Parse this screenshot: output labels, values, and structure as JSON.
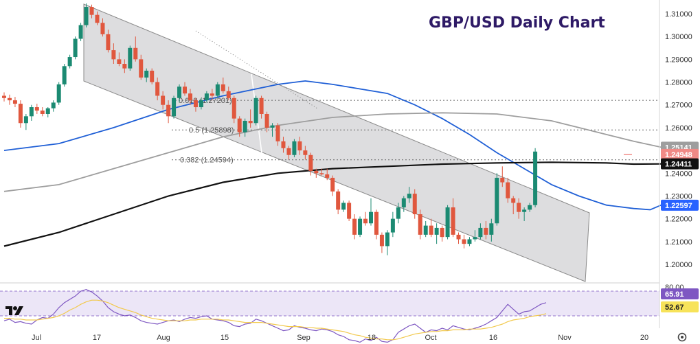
{
  "chart_data": [
    {
      "type": "candlestick",
      "title": "GBP/USD Daily Chart",
      "ylim": [
        1.19,
        1.315
      ],
      "y_ticks": [
        "1.31000",
        "1.30000",
        "1.29000",
        "1.28000",
        "1.27000",
        "1.26000",
        "1.25000",
        "1.24000",
        "1.23000",
        "1.22000",
        "1.21000",
        "1.20000"
      ],
      "x_ticks": [
        "Jul",
        "17",
        "Aug",
        "15",
        "Sep",
        "18",
        "Oct",
        "16",
        "Nov",
        "20"
      ],
      "price_badges": [
        {
          "value": "1.25141",
          "color": "#9e9e9e"
        },
        {
          "value": "1.24948",
          "color": "#f08a86"
        },
        {
          "value": "1.24411",
          "color": "#111111"
        },
        {
          "value": "1.22597",
          "color": "#2962ff"
        }
      ],
      "fib_levels": [
        {
          "label": "0.618 (1.27201)",
          "value": 1.272
        },
        {
          "label": "0.5 (1.25898)",
          "value": 1.259
        },
        {
          "label": "0.382 (1.24594)",
          "value": 1.2459
        }
      ],
      "series": [
        {
          "kind": "ohlc",
          "candles": [
            [
              1.274,
              1.2755,
              1.2715,
              1.273
            ],
            [
              1.273,
              1.2745,
              1.27,
              1.272
            ],
            [
              1.272,
              1.2735,
              1.269,
              1.2705
            ],
            [
              1.2705,
              1.272,
              1.26,
              1.262
            ],
            [
              1.262,
              1.266,
              1.259,
              1.265
            ],
            [
              1.265,
              1.27,
              1.263,
              1.269
            ],
            [
              1.269,
              1.2705,
              1.266,
              1.2675
            ],
            [
              1.2675,
              1.269,
              1.265,
              1.266
            ],
            [
              1.266,
              1.269,
              1.2645,
              1.2685
            ],
            [
              1.2685,
              1.272,
              1.267,
              1.271
            ],
            [
              1.271,
              1.28,
              1.27,
              1.279
            ],
            [
              1.279,
              1.288,
              1.278,
              1.287
            ],
            [
              1.287,
              1.292,
              1.286,
              1.291
            ],
            [
              1.291,
              1.3,
              1.29,
              1.299
            ],
            [
              1.299,
              1.306,
              1.298,
              1.305
            ],
            [
              1.305,
              1.3145,
              1.304,
              1.313
            ],
            [
              1.313,
              1.314,
              1.308,
              1.3095
            ],
            [
              1.3095,
              1.311,
              1.305,
              1.306
            ],
            [
              1.306,
              1.308,
              1.3,
              1.301
            ],
            [
              1.301,
              1.303,
              1.293,
              1.294
            ],
            [
              1.294,
              1.297,
              1.288,
              1.29
            ],
            [
              1.29,
              1.293,
              1.287,
              1.288
            ],
            [
              1.288,
              1.29,
              1.284,
              1.286
            ],
            [
              1.286,
              1.296,
              1.285,
              1.295
            ],
            [
              1.295,
              1.3,
              1.289,
              1.29
            ],
            [
              1.29,
              1.292,
              1.281,
              1.282
            ],
            [
              1.282,
              1.286,
              1.28,
              1.285
            ],
            [
              1.285,
              1.286,
              1.279,
              1.28
            ],
            [
              1.28,
              1.282,
              1.272,
              1.274
            ],
            [
              1.274,
              1.276,
              1.268,
              1.27
            ],
            [
              1.27,
              1.272,
              1.262,
              1.265
            ],
            [
              1.265,
              1.274,
              1.264,
              1.273
            ],
            [
              1.273,
              1.279,
              1.271,
              1.278
            ],
            [
              1.278,
              1.28,
              1.274,
              1.275
            ],
            [
              1.275,
              1.277,
              1.27,
              1.272
            ],
            [
              1.272,
              1.273,
              1.267,
              1.269
            ],
            [
              1.269,
              1.273,
              1.268,
              1.272
            ],
            [
              1.272,
              1.276,
              1.271,
              1.275
            ],
            [
              1.275,
              1.277,
              1.272,
              1.274
            ],
            [
              1.274,
              1.28,
              1.273,
              1.279
            ],
            [
              1.279,
              1.282,
              1.275,
              1.276
            ],
            [
              1.276,
              1.278,
              1.272,
              1.273
            ],
            [
              1.273,
              1.274,
              1.262,
              1.264
            ],
            [
              1.264,
              1.265,
              1.256,
              1.258
            ],
            [
              1.258,
              1.264,
              1.256,
              1.263
            ],
            [
              1.263,
              1.268,
              1.26,
              1.262
            ],
            [
              1.262,
              1.274,
              1.261,
              1.273
            ],
            [
              1.273,
              1.274,
              1.264,
              1.266
            ],
            [
              1.266,
              1.267,
              1.258,
              1.26
            ],
            [
              1.26,
              1.262,
              1.256,
              1.261
            ],
            [
              1.261,
              1.262,
              1.252,
              1.254
            ],
            [
              1.254,
              1.256,
              1.249,
              1.251
            ],
            [
              1.251,
              1.252,
              1.246,
              1.248
            ],
            [
              1.248,
              1.255,
              1.247,
              1.254
            ],
            [
              1.254,
              1.256,
              1.248,
              1.25
            ],
            [
              1.25,
              1.252,
              1.246,
              1.248
            ],
            [
              1.248,
              1.249,
              1.239,
              1.241
            ],
            [
              1.241,
              1.242,
              1.238,
              1.24
            ],
            [
              1.24,
              1.242,
              1.239,
              1.2395
            ],
            [
              1.2395,
              1.242,
              1.237,
              1.238
            ],
            [
              1.238,
              1.239,
              1.23,
              1.232
            ],
            [
              1.232,
              1.233,
              1.222,
              1.224
            ],
            [
              1.224,
              1.228,
              1.223,
              1.227
            ],
            [
              1.227,
              1.228,
              1.219,
              1.22
            ],
            [
              1.22,
              1.222,
              1.211,
              1.213
            ],
            [
              1.213,
              1.221,
              1.212,
              1.22
            ],
            [
              1.22,
              1.223,
              1.217,
              1.218
            ],
            [
              1.218,
              1.229,
              1.217,
              1.223
            ],
            [
              1.223,
              1.224,
              1.211,
              1.213
            ],
            [
              1.213,
              1.214,
              1.205,
              1.208
            ],
            [
              1.208,
              1.215,
              1.204,
              1.214
            ],
            [
              1.214,
              1.223,
              1.212,
              1.22
            ],
            [
              1.22,
              1.227,
              1.218,
              1.225
            ],
            [
              1.225,
              1.23,
              1.223,
              1.229
            ],
            [
              1.229,
              1.234,
              1.227,
              1.231
            ],
            [
              1.231,
              1.233,
              1.22,
              1.222
            ],
            [
              1.222,
              1.224,
              1.211,
              1.213
            ],
            [
              1.213,
              1.219,
              1.212,
              1.217
            ],
            [
              1.217,
              1.22,
              1.212,
              1.213
            ],
            [
              1.213,
              1.218,
              1.209,
              1.216
            ],
            [
              1.216,
              1.217,
              1.21,
              1.212
            ],
            [
              1.212,
              1.226,
              1.211,
              1.225
            ],
            [
              1.225,
              1.229,
              1.212,
              1.213
            ],
            [
              1.213,
              1.214,
              1.209,
              1.211
            ],
            [
              1.211,
              1.213,
              1.207,
              1.209
            ],
            [
              1.209,
              1.212,
              1.208,
              1.211
            ],
            [
              1.211,
              1.215,
              1.21,
              1.212
            ],
            [
              1.212,
              1.218,
              1.211,
              1.216
            ],
            [
              1.216,
              1.219,
              1.211,
              1.213
            ],
            [
              1.213,
              1.22,
              1.21,
              1.218
            ],
            [
              1.218,
              1.24,
              1.217,
              1.238
            ],
            [
              1.238,
              1.243,
              1.234,
              1.236
            ],
            [
              1.236,
              1.238,
              1.227,
              1.229
            ],
            [
              1.229,
              1.23,
              1.222,
              1.227
            ],
            [
              1.227,
              1.229,
              1.22,
              1.223
            ],
            [
              1.223,
              1.225,
              1.219,
              1.224
            ],
            [
              1.224,
              1.227,
              1.223,
              1.226
            ],
            [
              1.226,
              1.251,
              1.225,
              1.2495
            ]
          ]
        },
        {
          "kind": "ma",
          "color": "#1f5fd6",
          "points": [
            [
              0,
              1.25
            ],
            [
              10,
              1.253
            ],
            [
              20,
              1.26
            ],
            [
              30,
              1.268
            ],
            [
              40,
              1.274
            ],
            [
              50,
              1.279
            ],
            [
              55,
              1.2805
            ],
            [
              60,
              1.279
            ],
            [
              65,
              1.277
            ],
            [
              70,
              1.275
            ],
            [
              75,
              1.27
            ],
            [
              80,
              1.264
            ],
            [
              85,
              1.257
            ],
            [
              90,
              1.249
            ],
            [
              95,
              1.242
            ],
            [
              100,
              1.235
            ],
            [
              105,
              1.23
            ],
            [
              110,
              1.226
            ],
            [
              115,
              1.2245
            ],
            [
              118,
              1.224
            ],
            [
              120,
              1.226
            ]
          ]
        },
        {
          "kind": "ma",
          "color": "#9e9e9e",
          "points": [
            [
              0,
              1.232
            ],
            [
              10,
              1.235
            ],
            [
              20,
              1.242
            ],
            [
              30,
              1.249
            ],
            [
              40,
              1.256
            ],
            [
              50,
              1.261
            ],
            [
              60,
              1.2645
            ],
            [
              70,
              1.266
            ],
            [
              80,
              1.2665
            ],
            [
              90,
              1.266
            ],
            [
              100,
              1.263
            ],
            [
              105,
              1.26
            ],
            [
              110,
              1.257
            ],
            [
              115,
              1.254
            ],
            [
              120,
              1.2514
            ]
          ]
        },
        {
          "kind": "ma",
          "color": "#111111",
          "points": [
            [
              0,
              1.208
            ],
            [
              10,
              1.214
            ],
            [
              20,
              1.222
            ],
            [
              30,
              1.23
            ],
            [
              40,
              1.236
            ],
            [
              50,
              1.24
            ],
            [
              60,
              1.242
            ],
            [
              70,
              1.243
            ],
            [
              80,
              1.244
            ],
            [
              90,
              1.2445
            ],
            [
              100,
              1.2448
            ],
            [
              110,
              1.2445
            ],
            [
              115,
              1.244
            ],
            [
              120,
              1.2441
            ]
          ]
        }
      ]
    },
    {
      "type": "line",
      "name": "rsi",
      "ylim": [
        0,
        100
      ],
      "y_ticks": [
        "80.00"
      ],
      "badges": [
        {
          "value": "65.91",
          "color": "#7e57c2"
        },
        {
          "value": "52.67",
          "color": "#f7e35a"
        }
      ],
      "series": [
        {
          "color": "#7e57c2",
          "values": [
            44,
            46,
            42,
            43,
            41,
            40,
            45,
            48,
            47,
            52,
            60,
            66,
            70,
            74,
            80,
            82,
            79,
            74,
            68,
            60,
            55,
            52,
            50,
            51,
            48,
            44,
            42,
            41,
            40,
            42,
            44,
            45,
            43,
            46,
            48,
            47,
            49,
            50,
            46,
            45,
            44,
            42,
            38,
            37,
            40,
            41,
            46,
            44,
            41,
            38,
            35,
            32,
            33,
            38,
            36,
            35,
            33,
            32,
            34,
            33,
            31,
            27,
            25,
            21,
            20,
            18,
            22,
            20,
            24,
            19,
            18,
            21,
            30,
            34,
            38,
            40,
            35,
            30,
            33,
            32,
            35,
            33,
            38,
            36,
            34,
            33,
            35,
            37,
            40,
            44,
            48,
            56,
            64,
            58,
            52,
            55,
            56,
            60,
            64,
            66
          ]
        },
        {
          "color": "#f2c94c",
          "values": [
            47,
            47,
            46,
            46,
            45,
            45,
            45,
            46,
            47,
            48,
            50,
            53,
            57,
            60,
            64,
            67,
            69,
            69,
            68,
            66,
            63,
            60,
            58,
            56,
            54,
            51,
            49,
            47,
            46,
            45,
            44,
            44,
            44,
            44,
            45,
            45,
            46,
            46,
            46,
            46,
            45,
            45,
            44,
            43,
            42,
            42,
            42,
            42,
            41,
            40,
            39,
            38,
            37,
            37,
            37,
            36,
            36,
            35,
            35,
            34,
            33,
            32,
            31,
            29,
            27,
            26,
            24,
            23,
            22,
            22,
            21,
            21,
            22,
            24,
            26,
            28,
            29,
            30,
            31,
            31,
            32,
            32,
            33,
            33,
            33,
            34,
            34,
            34,
            35,
            36,
            38,
            40,
            43,
            45,
            46,
            47,
            49,
            50,
            51,
            52.67
          ]
        }
      ]
    }
  ]
}
